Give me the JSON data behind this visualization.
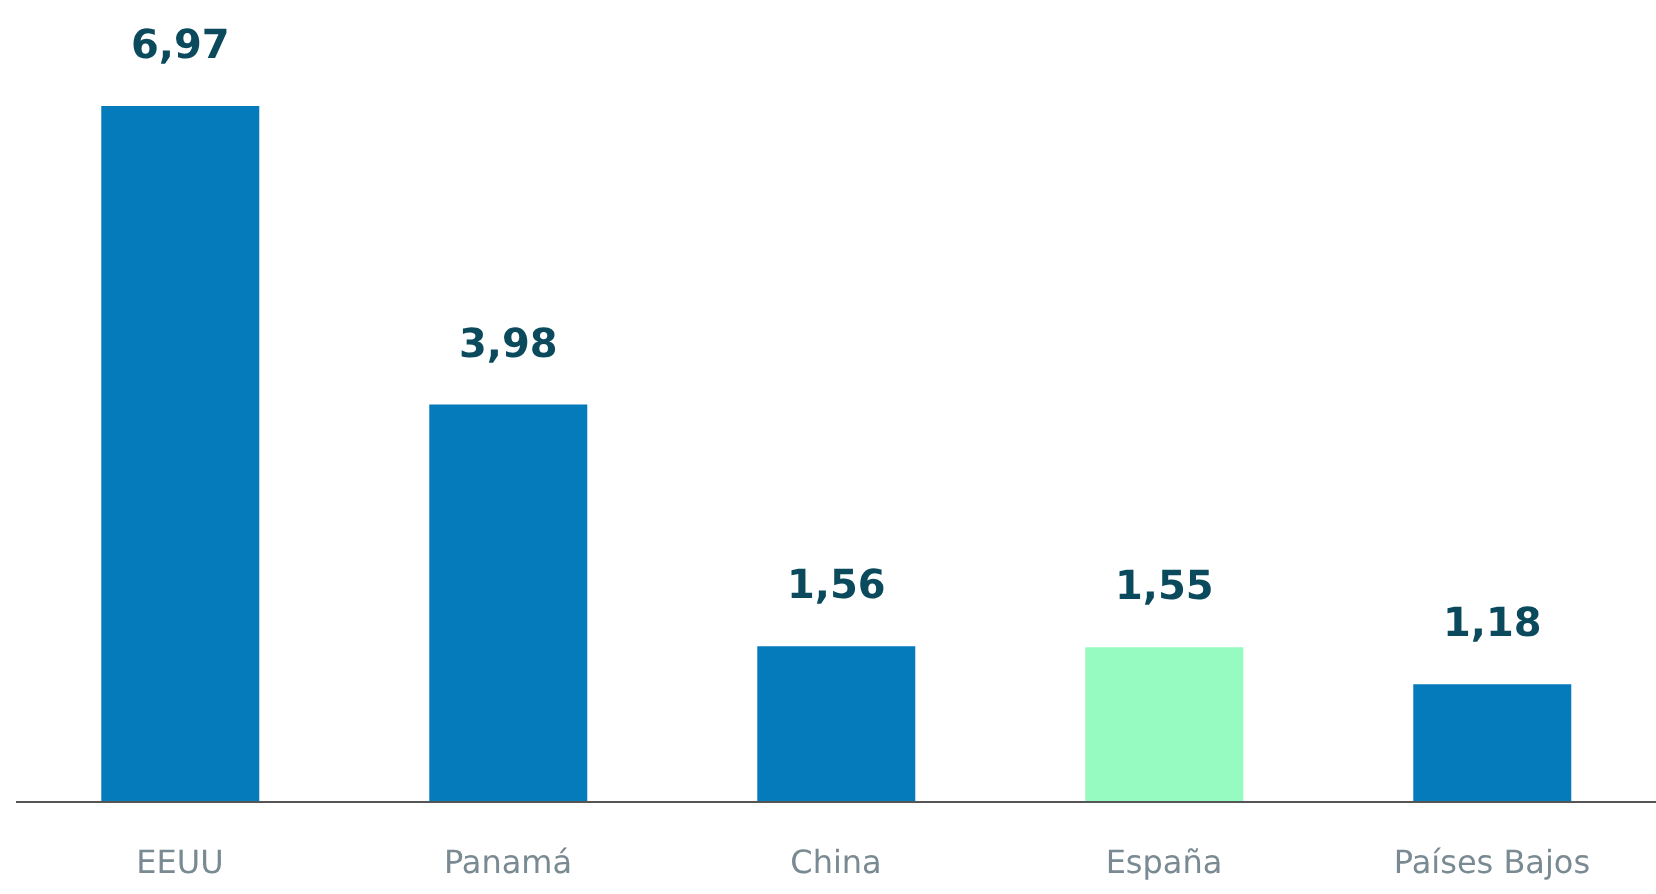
{
  "chart_data": {
    "type": "bar",
    "categories": [
      "EEUU",
      "Panamá",
      "China",
      "España",
      "Países Bajos"
    ],
    "values": [
      6.97,
      3.98,
      1.56,
      1.55,
      1.18
    ],
    "value_labels": [
      "6,97",
      "3,98",
      "1,56",
      "1,55",
      "1,18"
    ],
    "colors": [
      "#067bbb",
      "#067bbb",
      "#067bbb",
      "#96fbc0",
      "#067bbb"
    ],
    "grid": false,
    "legend": false
  }
}
